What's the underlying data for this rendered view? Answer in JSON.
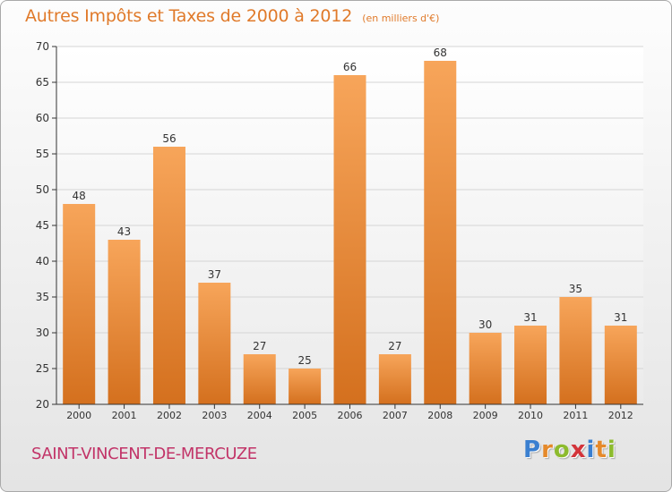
{
  "header": {
    "title": "Autres Impôts et Taxes de 2000 à 2012",
    "subtitle": "(en milliers d'€)"
  },
  "footer": {
    "commune": "SAINT-VINCENT-DE-MERCUZE",
    "logo_letters": [
      "P",
      "r",
      "o",
      "x",
      "i",
      "t",
      "i"
    ],
    "logo_colors": [
      "#3a7fd0",
      "#e5892a",
      "#8dbb2e",
      "#d3343a",
      "#3a7fd0",
      "#e5892a",
      "#8dbb2e"
    ]
  },
  "colors": {
    "bar_top": "#f7a55a",
    "bar_bottom": "#d4701e",
    "title": "#e07a2a",
    "commune": "#c23468",
    "axis": "#333333",
    "grid": "#d5d5d5"
  },
  "chart_data": {
    "type": "bar",
    "title": "Autres Impôts et Taxes de 2000 à 2012",
    "subtitle": "(en milliers d'€)",
    "xlabel": "",
    "ylabel": "",
    "categories": [
      "2000",
      "2001",
      "2002",
      "2003",
      "2004",
      "2005",
      "2006",
      "2007",
      "2008",
      "2009",
      "2010",
      "2011",
      "2012"
    ],
    "values": [
      48,
      43,
      56,
      37,
      27,
      25,
      66,
      27,
      68,
      30,
      31,
      35,
      31
    ],
    "data_labels": [
      "48",
      "43",
      "56",
      "37",
      "27",
      "25",
      "66",
      "27",
      "68",
      "30",
      "31",
      "35",
      "31"
    ],
    "ylim": [
      20,
      70
    ],
    "yticks": [
      "20",
      "25",
      "30",
      "35",
      "40",
      "45",
      "50",
      "55",
      "60",
      "65",
      "70"
    ],
    "grid": true,
    "legend": "none"
  }
}
